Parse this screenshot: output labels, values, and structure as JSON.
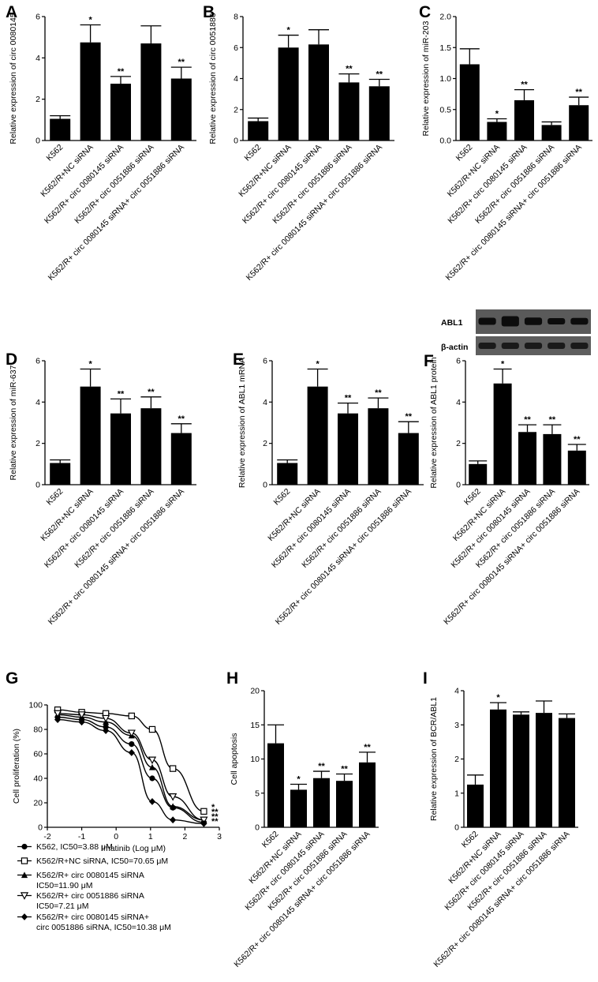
{
  "panel_labels": [
    "A",
    "B",
    "C",
    "D",
    "E",
    "F",
    "G",
    "H",
    "I"
  ],
  "categories": [
    "K562",
    "K562/R+NC siRNA",
    "K562/R+ circ 0080145 siRNA",
    "K562/R+ circ 0051886  siRNA",
    "K562/R+ circ 0080145 siRNA+ circ 0051886 siRNA"
  ],
  "blot": {
    "row1_label": "ABL1",
    "row2_label": "β-actin",
    "band_intensity": [
      0.55,
      1.0,
      0.6,
      0.45,
      0.5
    ]
  },
  "legend": [
    {
      "marker": "filled-circle",
      "text": "K562, IC50=3.88 μM"
    },
    {
      "marker": "open-square",
      "text": "K562/R+NC siRNA, IC50=70.65 μM"
    },
    {
      "marker": "filled-triangle-up",
      "text": "K562/R+ circ 0080145 siRNA",
      "text2": "IC50=11.90 μM"
    },
    {
      "marker": "open-triangle-down",
      "text": "K562/R+ circ 0051886  siRNA",
      "text2": "IC50=7.21 μM"
    },
    {
      "marker": "filled-diamond",
      "text": "K562/R+ circ 0080145 siRNA+",
      "text2": "circ 0051886 siRNA, IC50=10.38 μM"
    }
  ],
  "chart_data": [
    {
      "panel": "A",
      "type": "bar",
      "ylabel": "Relative expression of circ 0080145",
      "ylim": [
        0,
        6
      ],
      "yticks": [
        0,
        2,
        4,
        6
      ],
      "values": [
        1.05,
        4.75,
        2.75,
        4.7,
        3.0
      ],
      "errors": [
        0.15,
        0.85,
        0.35,
        0.85,
        0.55
      ],
      "annotations": [
        "",
        "*",
        "**",
        "",
        "**"
      ]
    },
    {
      "panel": "B",
      "type": "bar",
      "ylabel": "Relative expression of circ 0051886",
      "ylim": [
        0,
        8
      ],
      "yticks": [
        0,
        2,
        4,
        6,
        8
      ],
      "values": [
        1.25,
        6.0,
        6.2,
        3.75,
        3.5
      ],
      "errors": [
        0.2,
        0.8,
        0.95,
        0.55,
        0.45
      ],
      "annotations": [
        "",
        "*",
        "",
        "**",
        "**"
      ]
    },
    {
      "panel": "C",
      "type": "bar",
      "ylabel": "Relative expression of miR-203",
      "ylim": [
        0,
        2.0
      ],
      "yticks": [
        0.0,
        0.5,
        1.0,
        1.5,
        2.0
      ],
      "ytick_labels": [
        "0.0",
        "0.5",
        "1.0",
        "1.5",
        "2.0"
      ],
      "values": [
        1.23,
        0.3,
        0.65,
        0.25,
        0.57
      ],
      "errors": [
        0.25,
        0.05,
        0.17,
        0.05,
        0.13
      ],
      "annotations": [
        "",
        "*",
        "**",
        "",
        "**"
      ]
    },
    {
      "panel": "D",
      "type": "bar",
      "ylabel": "Relative expression of miR-637",
      "ylim": [
        0,
        6
      ],
      "yticks": [
        0,
        2,
        4,
        6
      ],
      "values": [
        1.05,
        4.75,
        3.45,
        3.7,
        2.5
      ],
      "errors": [
        0.15,
        0.85,
        0.7,
        0.55,
        0.45
      ],
      "annotations": [
        "",
        "*",
        "**",
        "**",
        "**"
      ]
    },
    {
      "panel": "E",
      "type": "bar",
      "ylabel": "Relative expression of ABL1 mRNA",
      "ylim": [
        0,
        6
      ],
      "yticks": [
        0,
        2,
        4,
        6
      ],
      "values": [
        1.05,
        4.75,
        3.45,
        3.7,
        2.5
      ],
      "errors": [
        0.15,
        0.85,
        0.5,
        0.5,
        0.55
      ],
      "annotations": [
        "",
        "*",
        "**",
        "**",
        "**"
      ]
    },
    {
      "panel": "F",
      "type": "bar",
      "ylabel": "Relative expression of ABL1 protein",
      "ylim": [
        0,
        6
      ],
      "yticks": [
        0,
        2,
        4,
        6
      ],
      "values": [
        1.0,
        4.9,
        2.55,
        2.45,
        1.65
      ],
      "errors": [
        0.15,
        0.7,
        0.35,
        0.45,
        0.3
      ],
      "annotations": [
        "",
        "*",
        "**",
        "**",
        "**"
      ]
    },
    {
      "panel": "G",
      "type": "line",
      "xlabel": "Imatinib (Log μM)",
      "ylabel": "Cell proliferation (%)",
      "xlim": [
        -2,
        3
      ],
      "ylim": [
        0,
        100
      ],
      "xticks": [
        -2,
        -1,
        0,
        1,
        2,
        3
      ],
      "yticks": [
        0,
        20,
        40,
        60,
        80,
        100
      ],
      "x": [
        -1.7,
        -1.0,
        -0.3,
        0.45,
        1.05,
        1.65,
        2.55
      ],
      "series": [
        {
          "name": "K562, IC50=3.88 μM",
          "values": [
            90,
            88,
            82,
            68,
            40,
            16,
            4
          ]
        },
        {
          "name": "K562/R+NC siRNA, IC50=70.65 μM",
          "values": [
            96,
            94,
            93,
            91,
            80,
            48,
            13
          ]
        },
        {
          "name": "K562/R+ circ 0080145 siRNA IC50=11.90 μM",
          "values": [
            92,
            90,
            86,
            75,
            49,
            17,
            6
          ]
        },
        {
          "name": "K562/R+ circ 0051886  siRNA IC50=7.21 μM",
          "values": [
            93,
            92,
            89,
            77,
            55,
            25,
            6
          ]
        },
        {
          "name": "K562/R+ circ 0080145 siRNA+ circ 0051886 siRNA, IC50=10.38 μM",
          "values": [
            88,
            86,
            79,
            61,
            21,
            6,
            3
          ]
        }
      ],
      "annotations": [
        "*",
        "**",
        "**",
        "**"
      ]
    },
    {
      "panel": "H",
      "type": "bar",
      "ylabel": "Cell apoptosis",
      "ylim": [
        0,
        20
      ],
      "yticks": [
        0,
        5,
        10,
        15,
        20
      ],
      "values": [
        12.3,
        5.5,
        7.2,
        6.8,
        9.5
      ],
      "errors": [
        2.7,
        0.8,
        1.0,
        1.0,
        1.5
      ],
      "annotations": [
        "",
        "*",
        "**",
        "**",
        "**"
      ]
    },
    {
      "panel": "I",
      "type": "bar",
      "ylabel": "Relative expression of BCR/ABL1",
      "ylim": [
        0,
        4
      ],
      "yticks": [
        0,
        1,
        2,
        3,
        4
      ],
      "values": [
        1.25,
        3.45,
        3.3,
        3.35,
        3.2
      ],
      "errors": [
        0.28,
        0.2,
        0.08,
        0.35,
        0.12
      ],
      "annotations": [
        "",
        "*",
        "",
        "",
        ""
      ]
    }
  ]
}
